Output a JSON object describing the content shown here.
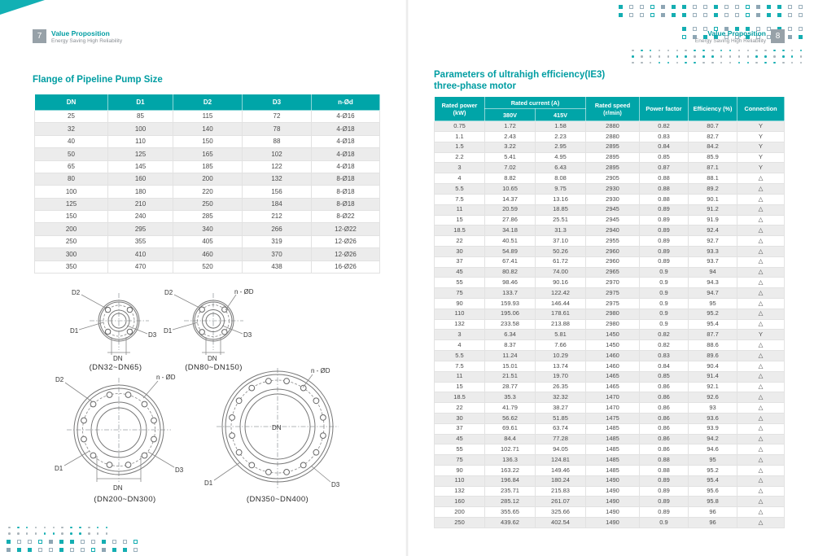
{
  "accent": "#00a5a8",
  "left": {
    "page_number": "7",
    "header_title": "Value Proposition",
    "header_subtitle": "Energy Saving High Reliability",
    "section_title": "Flange of Pipeline Pump Size",
    "table": {
      "headers": [
        "DN",
        "D1",
        "D2",
        "D3",
        "n-Ød"
      ],
      "rows": [
        [
          "25",
          "85",
          "115",
          "72",
          "4-Ø16"
        ],
        [
          "32",
          "100",
          "140",
          "78",
          "4-Ø18"
        ],
        [
          "40",
          "110",
          "150",
          "88",
          "4-Ø18"
        ],
        [
          "50",
          "125",
          "165",
          "102",
          "4-Ø18"
        ],
        [
          "65",
          "145",
          "185",
          "122",
          "4-Ø18"
        ],
        [
          "80",
          "160",
          "200",
          "132",
          "8-Ø18"
        ],
        [
          "100",
          "180",
          "220",
          "156",
          "8-Ø18"
        ],
        [
          "125",
          "210",
          "250",
          "184",
          "8-Ø18"
        ],
        [
          "150",
          "240",
          "285",
          "212",
          "8-Ø22"
        ],
        [
          "200",
          "295",
          "340",
          "266",
          "12-Ø22"
        ],
        [
          "250",
          "355",
          "405",
          "319",
          "12-Ø26"
        ],
        [
          "300",
          "410",
          "460",
          "370",
          "12-Ø26"
        ],
        [
          "350",
          "470",
          "520",
          "438",
          "16-Ø26"
        ]
      ]
    },
    "diagram_labels": {
      "d1": "D1",
      "d2": "D2",
      "d3": "D3",
      "dn": "DN",
      "nod": "n - ØD"
    },
    "diagrams": [
      {
        "caption": "(DN32~DN65)"
      },
      {
        "caption": "(DN80~DN150)"
      },
      {
        "caption": "(DN200~DN300)"
      },
      {
        "caption": "(DN350~DN400)"
      }
    ]
  },
  "right": {
    "page_number": "8",
    "header_title": "Value Proposition",
    "header_subtitle": "Energy Saving High Reliability",
    "section_title": "Parameters of ultrahigh efficiency(IE3)",
    "section_subtitle": "three-phase motor",
    "table": {
      "h_power": "Rated power (kW)",
      "h_current": "Rated current (A)",
      "h_380": "380V",
      "h_415": "415V",
      "h_speed": "Rated speed (r/min)",
      "h_pf": "Power factor",
      "h_eff": "Efficiency (%)",
      "h_conn": "Connection",
      "rows": [
        [
          "0.75",
          "1.72",
          "1.58",
          "2880",
          "0.82",
          "80.7",
          "Y"
        ],
        [
          "1.1",
          "2.43",
          "2.23",
          "2880",
          "0.83",
          "82.7",
          "Y"
        ],
        [
          "1.5",
          "3.22",
          "2.95",
          "2895",
          "0.84",
          "84.2",
          "Y"
        ],
        [
          "2.2",
          "5.41",
          "4.95",
          "2895",
          "0.85",
          "85.9",
          "Y"
        ],
        [
          "3",
          "7.02",
          "6.43",
          "2895",
          "0.87",
          "87.1",
          "Y"
        ],
        [
          "4",
          "8.82",
          "8.08",
          "2905",
          "0.88",
          "88.1",
          "△"
        ],
        [
          "5.5",
          "10.65",
          "9.75",
          "2930",
          "0.88",
          "89.2",
          "△"
        ],
        [
          "7.5",
          "14.37",
          "13.16",
          "2930",
          "0.88",
          "90.1",
          "△"
        ],
        [
          "11",
          "20.59",
          "18.85",
          "2945",
          "0.89",
          "91.2",
          "△"
        ],
        [
          "15",
          "27.86",
          "25.51",
          "2945",
          "0.89",
          "91.9",
          "△"
        ],
        [
          "18.5",
          "34.18",
          "31.3",
          "2940",
          "0.89",
          "92.4",
          "△"
        ],
        [
          "22",
          "40.51",
          "37.10",
          "2955",
          "0.89",
          "92.7",
          "△"
        ],
        [
          "30",
          "54.89",
          "50.26",
          "2960",
          "0.89",
          "93.3",
          "△"
        ],
        [
          "37",
          "67.41",
          "61.72",
          "2960",
          "0.89",
          "93.7",
          "△"
        ],
        [
          "45",
          "80.82",
          "74.00",
          "2965",
          "0.9",
          "94",
          "△"
        ],
        [
          "55",
          "98.46",
          "90.16",
          "2970",
          "0.9",
          "94.3",
          "△"
        ],
        [
          "75",
          "133.7",
          "122.42",
          "2975",
          "0.9",
          "94.7",
          "△"
        ],
        [
          "90",
          "159.93",
          "146.44",
          "2975",
          "0.9",
          "95",
          "△"
        ],
        [
          "110",
          "195.06",
          "178.61",
          "2980",
          "0.9",
          "95.2",
          "△"
        ],
        [
          "132",
          "233.58",
          "213.88",
          "2980",
          "0.9",
          "95.4",
          "△"
        ],
        [
          "3",
          "6.34",
          "5.81",
          "1450",
          "0.82",
          "87.7",
          "Y"
        ],
        [
          "4",
          "8.37",
          "7.66",
          "1450",
          "0.82",
          "88.6",
          "△"
        ],
        [
          "5.5",
          "11.24",
          "10.29",
          "1460",
          "0.83",
          "89.6",
          "△"
        ],
        [
          "7.5",
          "15.01",
          "13.74",
          "1460",
          "0.84",
          "90.4",
          "△"
        ],
        [
          "11",
          "21.51",
          "19.70",
          "1465",
          "0.85",
          "91.4",
          "△"
        ],
        [
          "15",
          "28.77",
          "26.35",
          "1465",
          "0.86",
          "92.1",
          "△"
        ],
        [
          "18.5",
          "35.3",
          "32.32",
          "1470",
          "0.86",
          "92.6",
          "△"
        ],
        [
          "22",
          "41.79",
          "38.27",
          "1470",
          "0.86",
          "93",
          "△"
        ],
        [
          "30",
          "56.62",
          "51.85",
          "1475",
          "0.86",
          "93.6",
          "△"
        ],
        [
          "37",
          "69.61",
          "63.74",
          "1485",
          "0.86",
          "93.9",
          "△"
        ],
        [
          "45",
          "84.4",
          "77.28",
          "1485",
          "0.86",
          "94.2",
          "△"
        ],
        [
          "55",
          "102.71",
          "94.05",
          "1485",
          "0.86",
          "94.6",
          "△"
        ],
        [
          "75",
          "136.3",
          "124.81",
          "1485",
          "0.88",
          "95",
          "△"
        ],
        [
          "90",
          "163.22",
          "149.46",
          "1485",
          "0.88",
          "95.2",
          "△"
        ],
        [
          "110",
          "196.84",
          "180.24",
          "1490",
          "0.89",
          "95.4",
          "△"
        ],
        [
          "132",
          "235.71",
          "215.83",
          "1490",
          "0.89",
          "95.6",
          "△"
        ],
        [
          "160",
          "285.12",
          "261.07",
          "1490",
          "0.89",
          "95.8",
          "△"
        ],
        [
          "200",
          "355.65",
          "325.66",
          "1490",
          "0.89",
          "96",
          "△"
        ],
        [
          "250",
          "439.62",
          "402.54",
          "1490",
          "0.9",
          "96",
          "△"
        ]
      ]
    }
  }
}
